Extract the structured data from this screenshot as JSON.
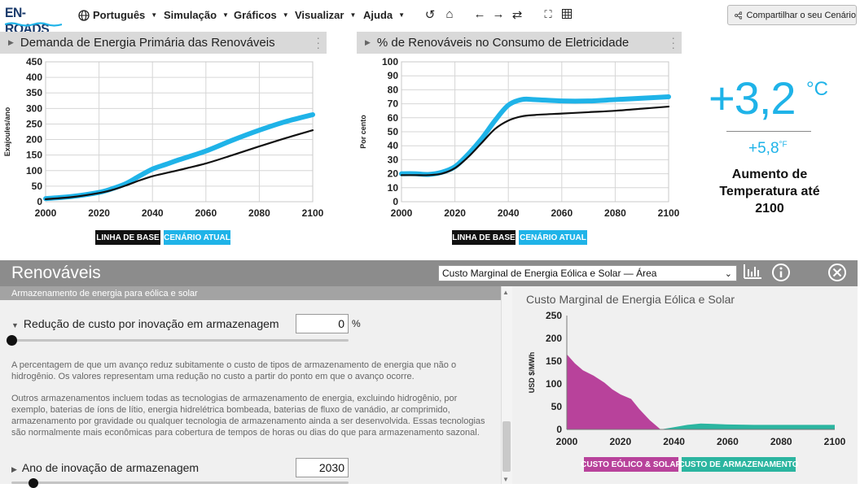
{
  "app": {
    "logo_text": "EN-ROADS",
    "menus": [
      {
        "label": "Português",
        "icon": "globe-icon"
      },
      {
        "label": "Simulação"
      },
      {
        "label": "Gráficos"
      },
      {
        "label": "Visualizar"
      },
      {
        "label": "Ajuda"
      }
    ],
    "tools": [
      "undo-icon",
      "home-icon",
      "back-arrow-icon",
      "forward-arrow-icon",
      "refresh-icon",
      "fullscreen-icon",
      "grid-icon"
    ],
    "share_label": "Compartilhar o seu Cenário"
  },
  "colors": {
    "baseline": "#111111",
    "current": "#1fb3e8",
    "wind_solar": "#b8429b",
    "storage": "#2bb5a0",
    "temperature": "#1fb3e8"
  },
  "graph1": {
    "title": "Demanda de Energia Primária das Renováveis",
    "chart_data": {
      "type": "line",
      "title": "Demanda de Energia Primária das Renováveis",
      "ylabel": "Exajoules/ano",
      "xlabel": "",
      "x": [
        2000,
        2010,
        2020,
        2025,
        2030,
        2035,
        2040,
        2045,
        2050,
        2060,
        2070,
        2080,
        2090,
        2100
      ],
      "xticks": [
        2000,
        2020,
        2040,
        2060,
        2080,
        2100
      ],
      "yticks": [
        0,
        50,
        100,
        150,
        200,
        250,
        300,
        350,
        400,
        450
      ],
      "ylim": [
        0,
        450
      ],
      "series": [
        {
          "name": "LINHA DE BASE",
          "values": [
            8,
            15,
            28,
            38,
            52,
            68,
            82,
            92,
            102,
            123,
            150,
            178,
            205,
            230
          ]
        },
        {
          "name": "CENÁRIO ATUAL",
          "values": [
            10,
            17,
            30,
            42,
            58,
            82,
            105,
            120,
            135,
            163,
            198,
            230,
            258,
            280
          ]
        }
      ],
      "grid": true
    }
  },
  "graph2": {
    "title": "% de Renováveis no Consumo de Eletricidade",
    "chart_data": {
      "type": "line",
      "title": "% de Renováveis no Consumo de Eletricidade",
      "ylabel": "Por cento",
      "xlabel": "",
      "x": [
        2000,
        2005,
        2010,
        2015,
        2020,
        2025,
        2030,
        2035,
        2040,
        2045,
        2050,
        2060,
        2070,
        2080,
        2090,
        2100
      ],
      "xticks": [
        2000,
        2020,
        2040,
        2060,
        2080,
        2100
      ],
      "yticks": [
        0,
        10,
        20,
        30,
        40,
        50,
        60,
        70,
        80,
        90,
        100
      ],
      "ylim": [
        0,
        100
      ],
      "series": [
        {
          "name": "LINHA DE BASE",
          "values": [
            19,
            19,
            19,
            20,
            24,
            32,
            42,
            52,
            58,
            61,
            62,
            63,
            64,
            65,
            66.5,
            68
          ]
        },
        {
          "name": "CENÁRIO ATUAL",
          "values": [
            20,
            20,
            19.5,
            21,
            25,
            34,
            45,
            58,
            69,
            73,
            73,
            72,
            72,
            73,
            74,
            75
          ]
        }
      ],
      "grid": true
    }
  },
  "legend": {
    "baseline": "LINHA DE BASE",
    "current": "CENÁRIO ATUAL"
  },
  "temperature": {
    "value": "+3,2",
    "unit": "°C",
    "fahrenheit": "+5,8",
    "f_unit": "°F",
    "label": "Aumento de Temperatura até 2100"
  },
  "panel": {
    "title": "Renováveis",
    "select_value": "Custo Marginal de Energia Eólica e Solar — Área",
    "subheader": "Armazenamento de energia para eólica e solar",
    "slider1": {
      "label": "Redução de custo por inovação em armazenagem",
      "value": "0",
      "unit": "%",
      "position": 0
    },
    "desc1": "A percentagem de que um avanço reduz subitamente o custo de tipos de armazenamento de energia que não o hidrogênio. Os valores representam uma redução no custo a partir do ponto em que o avanço ocorre.",
    "desc2": "Outros armazenamentos incluem todas as tecnologias de armazenamento de energia, excluindo hidrogênio, por exemplo, baterias de íons de lítio, energia hidrelétrica bombeada, baterias de fluxo de vanádio, ar comprimido, armazenamento por gravidade ou qualquer tecnologia de armazenamento ainda a ser desenvolvida. Essas tecnologias são normalmente mais econômicas para cobertura de tempos de horas ou dias do que para armazenamento sazonal.",
    "slider2": {
      "label": "Ano de inovação de armazenagem",
      "value": "2030"
    }
  },
  "mini_chart": {
    "title": "Custo Marginal de Energia Eólica e Solar",
    "chart_data": {
      "type": "area",
      "title": "Custo Marginal de Energia Eólica e Solar",
      "ylabel": "USD $/MWh",
      "xlabel": "",
      "xticks": [
        2000,
        2020,
        2040,
        2060,
        2080,
        2100
      ],
      "yticks": [
        0,
        50,
        100,
        150,
        200,
        250
      ],
      "ylim": [
        0,
        250
      ],
      "x": [
        2000,
        2003,
        2006,
        2010,
        2014,
        2017,
        2020,
        2024,
        2027,
        2031,
        2035,
        2040,
        2045,
        2050,
        2055,
        2060,
        2070,
        2080,
        2090,
        2100
      ],
      "series": [
        {
          "name": "CUSTO EÓLICO & SOLAR",
          "values": [
            165,
            145,
            130,
            118,
            103,
            88,
            77,
            67,
            45,
            20,
            0,
            0,
            0,
            0,
            0,
            0,
            0,
            0,
            0,
            0
          ]
        },
        {
          "name": "CUSTO DE ARMAZENAMENTO",
          "values": [
            0,
            0,
            0,
            0,
            0,
            0,
            0,
            0,
            0,
            0,
            0,
            5,
            10,
            13,
            12,
            11,
            10,
            10,
            10,
            10
          ]
        }
      ],
      "grid": false
    }
  }
}
